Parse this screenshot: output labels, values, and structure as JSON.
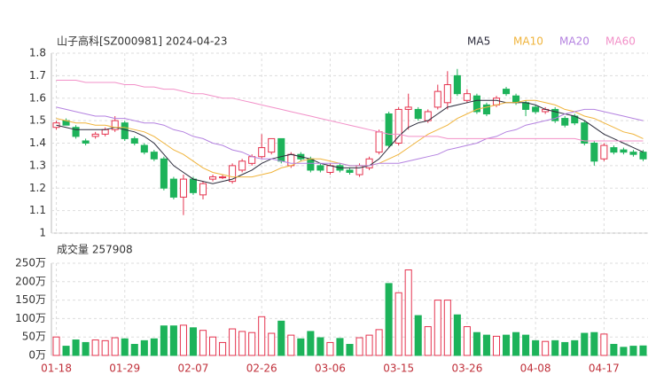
{
  "chart_data": [
    {
      "type": "candlestick",
      "title": "山子高科[SZ000981] 2024-04-23",
      "up_color": "#e5344f",
      "down_color": "#1db35a",
      "grid": true,
      "open": [
        1.47,
        1.5,
        1.47,
        1.41,
        1.43,
        1.44,
        1.46,
        1.49,
        1.42,
        1.39,
        1.36,
        1.33,
        1.24,
        1.16,
        1.24,
        1.17,
        1.24,
        1.25,
        1.23,
        1.28,
        1.31,
        1.34,
        1.36,
        1.42,
        1.3,
        1.35,
        1.33,
        1.3,
        1.27,
        1.3,
        1.28,
        1.26,
        1.29,
        1.36,
        1.53,
        1.4,
        1.55,
        1.55,
        1.5,
        1.56,
        1.58,
        1.7,
        1.59,
        1.61,
        1.57,
        1.57,
        1.64,
        1.61,
        1.58,
        1.56,
        1.54,
        1.55,
        1.51,
        1.52,
        1.49,
        1.4,
        1.33,
        1.38,
        1.37,
        1.36,
        1.36
      ],
      "high": [
        1.5,
        1.51,
        1.48,
        1.42,
        1.45,
        1.47,
        1.52,
        1.5,
        1.43,
        1.4,
        1.37,
        1.34,
        1.25,
        1.26,
        1.25,
        1.23,
        1.26,
        1.26,
        1.31,
        1.33,
        1.35,
        1.44,
        1.42,
        1.42,
        1.36,
        1.36,
        1.34,
        1.31,
        1.31,
        1.31,
        1.29,
        1.31,
        1.34,
        1.46,
        1.54,
        1.56,
        1.62,
        1.56,
        1.55,
        1.66,
        1.72,
        1.73,
        1.64,
        1.62,
        1.58,
        1.61,
        1.65,
        1.62,
        1.59,
        1.57,
        1.56,
        1.56,
        1.52,
        1.53,
        1.5,
        1.41,
        1.4,
        1.39,
        1.38,
        1.37,
        1.37
      ],
      "low": [
        1.46,
        1.48,
        1.42,
        1.39,
        1.42,
        1.43,
        1.45,
        1.41,
        1.39,
        1.35,
        1.32,
        1.19,
        1.15,
        1.08,
        1.17,
        1.15,
        1.23,
        1.24,
        1.22,
        1.27,
        1.3,
        1.33,
        1.35,
        1.31,
        1.29,
        1.32,
        1.27,
        1.27,
        1.26,
        1.27,
        1.26,
        1.25,
        1.28,
        1.35,
        1.38,
        1.39,
        1.46,
        1.5,
        1.49,
        1.55,
        1.55,
        1.61,
        1.58,
        1.53,
        1.52,
        1.56,
        1.61,
        1.57,
        1.52,
        1.53,
        1.53,
        1.49,
        1.47,
        1.48,
        1.39,
        1.3,
        1.32,
        1.35,
        1.35,
        1.34,
        1.32
      ],
      "close": [
        1.49,
        1.48,
        1.43,
        1.4,
        1.44,
        1.46,
        1.5,
        1.42,
        1.4,
        1.36,
        1.33,
        1.2,
        1.16,
        1.24,
        1.18,
        1.22,
        1.25,
        1.25,
        1.3,
        1.32,
        1.34,
        1.38,
        1.42,
        1.32,
        1.35,
        1.33,
        1.28,
        1.28,
        1.3,
        1.28,
        1.27,
        1.3,
        1.33,
        1.45,
        1.39,
        1.55,
        1.56,
        1.51,
        1.54,
        1.63,
        1.66,
        1.62,
        1.62,
        1.54,
        1.53,
        1.6,
        1.62,
        1.58,
        1.55,
        1.54,
        1.55,
        1.5,
        1.48,
        1.49,
        1.4,
        1.32,
        1.39,
        1.36,
        1.36,
        1.35,
        1.33
      ],
      "series": [
        {
          "name": "MA5",
          "color": "#2b2b3b",
          "values": [
            1.48,
            1.47,
            1.46,
            1.46,
            1.46,
            1.46,
            1.47,
            1.46,
            1.45,
            1.43,
            1.4,
            1.35,
            1.3,
            1.27,
            1.24,
            1.23,
            1.22,
            1.23,
            1.24,
            1.26,
            1.28,
            1.31,
            1.33,
            1.34,
            1.35,
            1.34,
            1.33,
            1.31,
            1.3,
            1.29,
            1.29,
            1.29,
            1.3,
            1.33,
            1.38,
            1.43,
            1.47,
            1.49,
            1.5,
            1.53,
            1.56,
            1.57,
            1.58,
            1.59,
            1.59,
            1.59,
            1.58,
            1.58,
            1.58,
            1.57,
            1.55,
            1.54,
            1.53,
            1.52,
            1.5,
            1.47,
            1.44,
            1.42,
            1.4,
            1.38,
            1.36
          ]
        },
        {
          "name": "MA10",
          "color": "#f0b43c",
          "values": [
            1.51,
            1.5,
            1.49,
            1.49,
            1.48,
            1.48,
            1.47,
            1.47,
            1.46,
            1.45,
            1.43,
            1.4,
            1.37,
            1.35,
            1.32,
            1.29,
            1.27,
            1.26,
            1.25,
            1.25,
            1.25,
            1.26,
            1.27,
            1.29,
            1.3,
            1.32,
            1.33,
            1.33,
            1.32,
            1.31,
            1.3,
            1.3,
            1.3,
            1.31,
            1.33,
            1.35,
            1.38,
            1.41,
            1.44,
            1.46,
            1.48,
            1.51,
            1.53,
            1.55,
            1.56,
            1.57,
            1.58,
            1.58,
            1.59,
            1.59,
            1.58,
            1.57,
            1.55,
            1.54,
            1.52,
            1.51,
            1.49,
            1.47,
            1.45,
            1.44,
            1.42
          ]
        },
        {
          "name": "MA20",
          "color": "#b482e0",
          "values": [
            1.56,
            1.55,
            1.54,
            1.53,
            1.52,
            1.52,
            1.51,
            1.51,
            1.5,
            1.49,
            1.49,
            1.48,
            1.46,
            1.45,
            1.43,
            1.42,
            1.4,
            1.39,
            1.37,
            1.36,
            1.34,
            1.33,
            1.33,
            1.32,
            1.31,
            1.31,
            1.31,
            1.31,
            1.31,
            1.31,
            1.3,
            1.3,
            1.3,
            1.31,
            1.31,
            1.31,
            1.32,
            1.33,
            1.34,
            1.35,
            1.37,
            1.38,
            1.39,
            1.4,
            1.42,
            1.43,
            1.45,
            1.46,
            1.48,
            1.49,
            1.5,
            1.51,
            1.53,
            1.54,
            1.55,
            1.55,
            1.54,
            1.53,
            1.52,
            1.51,
            1.5
          ]
        },
        {
          "name": "MA60",
          "color": "#f290c8",
          "values": [
            1.68,
            1.68,
            1.68,
            1.67,
            1.67,
            1.67,
            1.67,
            1.66,
            1.66,
            1.65,
            1.65,
            1.64,
            1.64,
            1.63,
            1.62,
            1.62,
            1.61,
            1.6,
            1.6,
            1.59,
            1.58,
            1.57,
            1.56,
            1.55,
            1.54,
            1.53,
            1.52,
            1.51,
            1.5,
            1.49,
            1.48,
            1.47,
            1.46,
            1.45,
            1.44,
            1.44,
            1.43,
            1.43,
            1.43,
            1.43,
            1.42,
            1.42,
            1.42,
            1.42,
            1.42,
            1.42,
            1.42,
            1.42,
            1.42,
            1.42,
            1.42,
            1.42,
            1.42,
            1.42,
            1.41,
            1.41,
            1.41,
            1.41,
            1.41,
            1.41,
            1.41
          ]
        }
      ],
      "ylim": [
        1,
        1.8
      ],
      "yticks": [
        1,
        1.1,
        1.2,
        1.3,
        1.4,
        1.5,
        1.6,
        1.7,
        1.8
      ]
    },
    {
      "type": "bar",
      "title": "成交量 257908",
      "grid": true,
      "categories": [
        "01-18",
        null,
        null,
        null,
        null,
        null,
        null,
        "01-29",
        null,
        null,
        null,
        null,
        null,
        null,
        "02-07",
        null,
        null,
        null,
        null,
        null,
        null,
        "02-26",
        null,
        null,
        null,
        null,
        null,
        null,
        "03-06",
        null,
        null,
        null,
        null,
        null,
        null,
        "03-15",
        null,
        null,
        null,
        null,
        null,
        null,
        "03-26",
        null,
        null,
        null,
        null,
        null,
        null,
        "04-08",
        null,
        null,
        null,
        null,
        null,
        null,
        "04-17",
        null,
        null,
        null,
        null
      ],
      "values": [
        50,
        25,
        42,
        35,
        42,
        40,
        48,
        45,
        30,
        40,
        45,
        80,
        80,
        82,
        75,
        68,
        50,
        35,
        72,
        65,
        62,
        105,
        60,
        93,
        55,
        45,
        65,
        48,
        35,
        46,
        30,
        48,
        55,
        70,
        195,
        170,
        232,
        108,
        78,
        150,
        150,
        110,
        78,
        62,
        55,
        52,
        55,
        62,
        55,
        40,
        38,
        40,
        35,
        40,
        60,
        62,
        58,
        30,
        22,
        25,
        25.79
      ],
      "ylim": [
        0,
        250
      ],
      "yticks": [
        {
          "value": 0,
          "label": "0万"
        },
        {
          "value": 50,
          "label": "50万"
        },
        {
          "value": 100,
          "label": "100万"
        },
        {
          "value": 150,
          "label": "150万"
        },
        {
          "value": 200,
          "label": "200万"
        },
        {
          "value": 250,
          "label": "250万"
        }
      ]
    }
  ]
}
